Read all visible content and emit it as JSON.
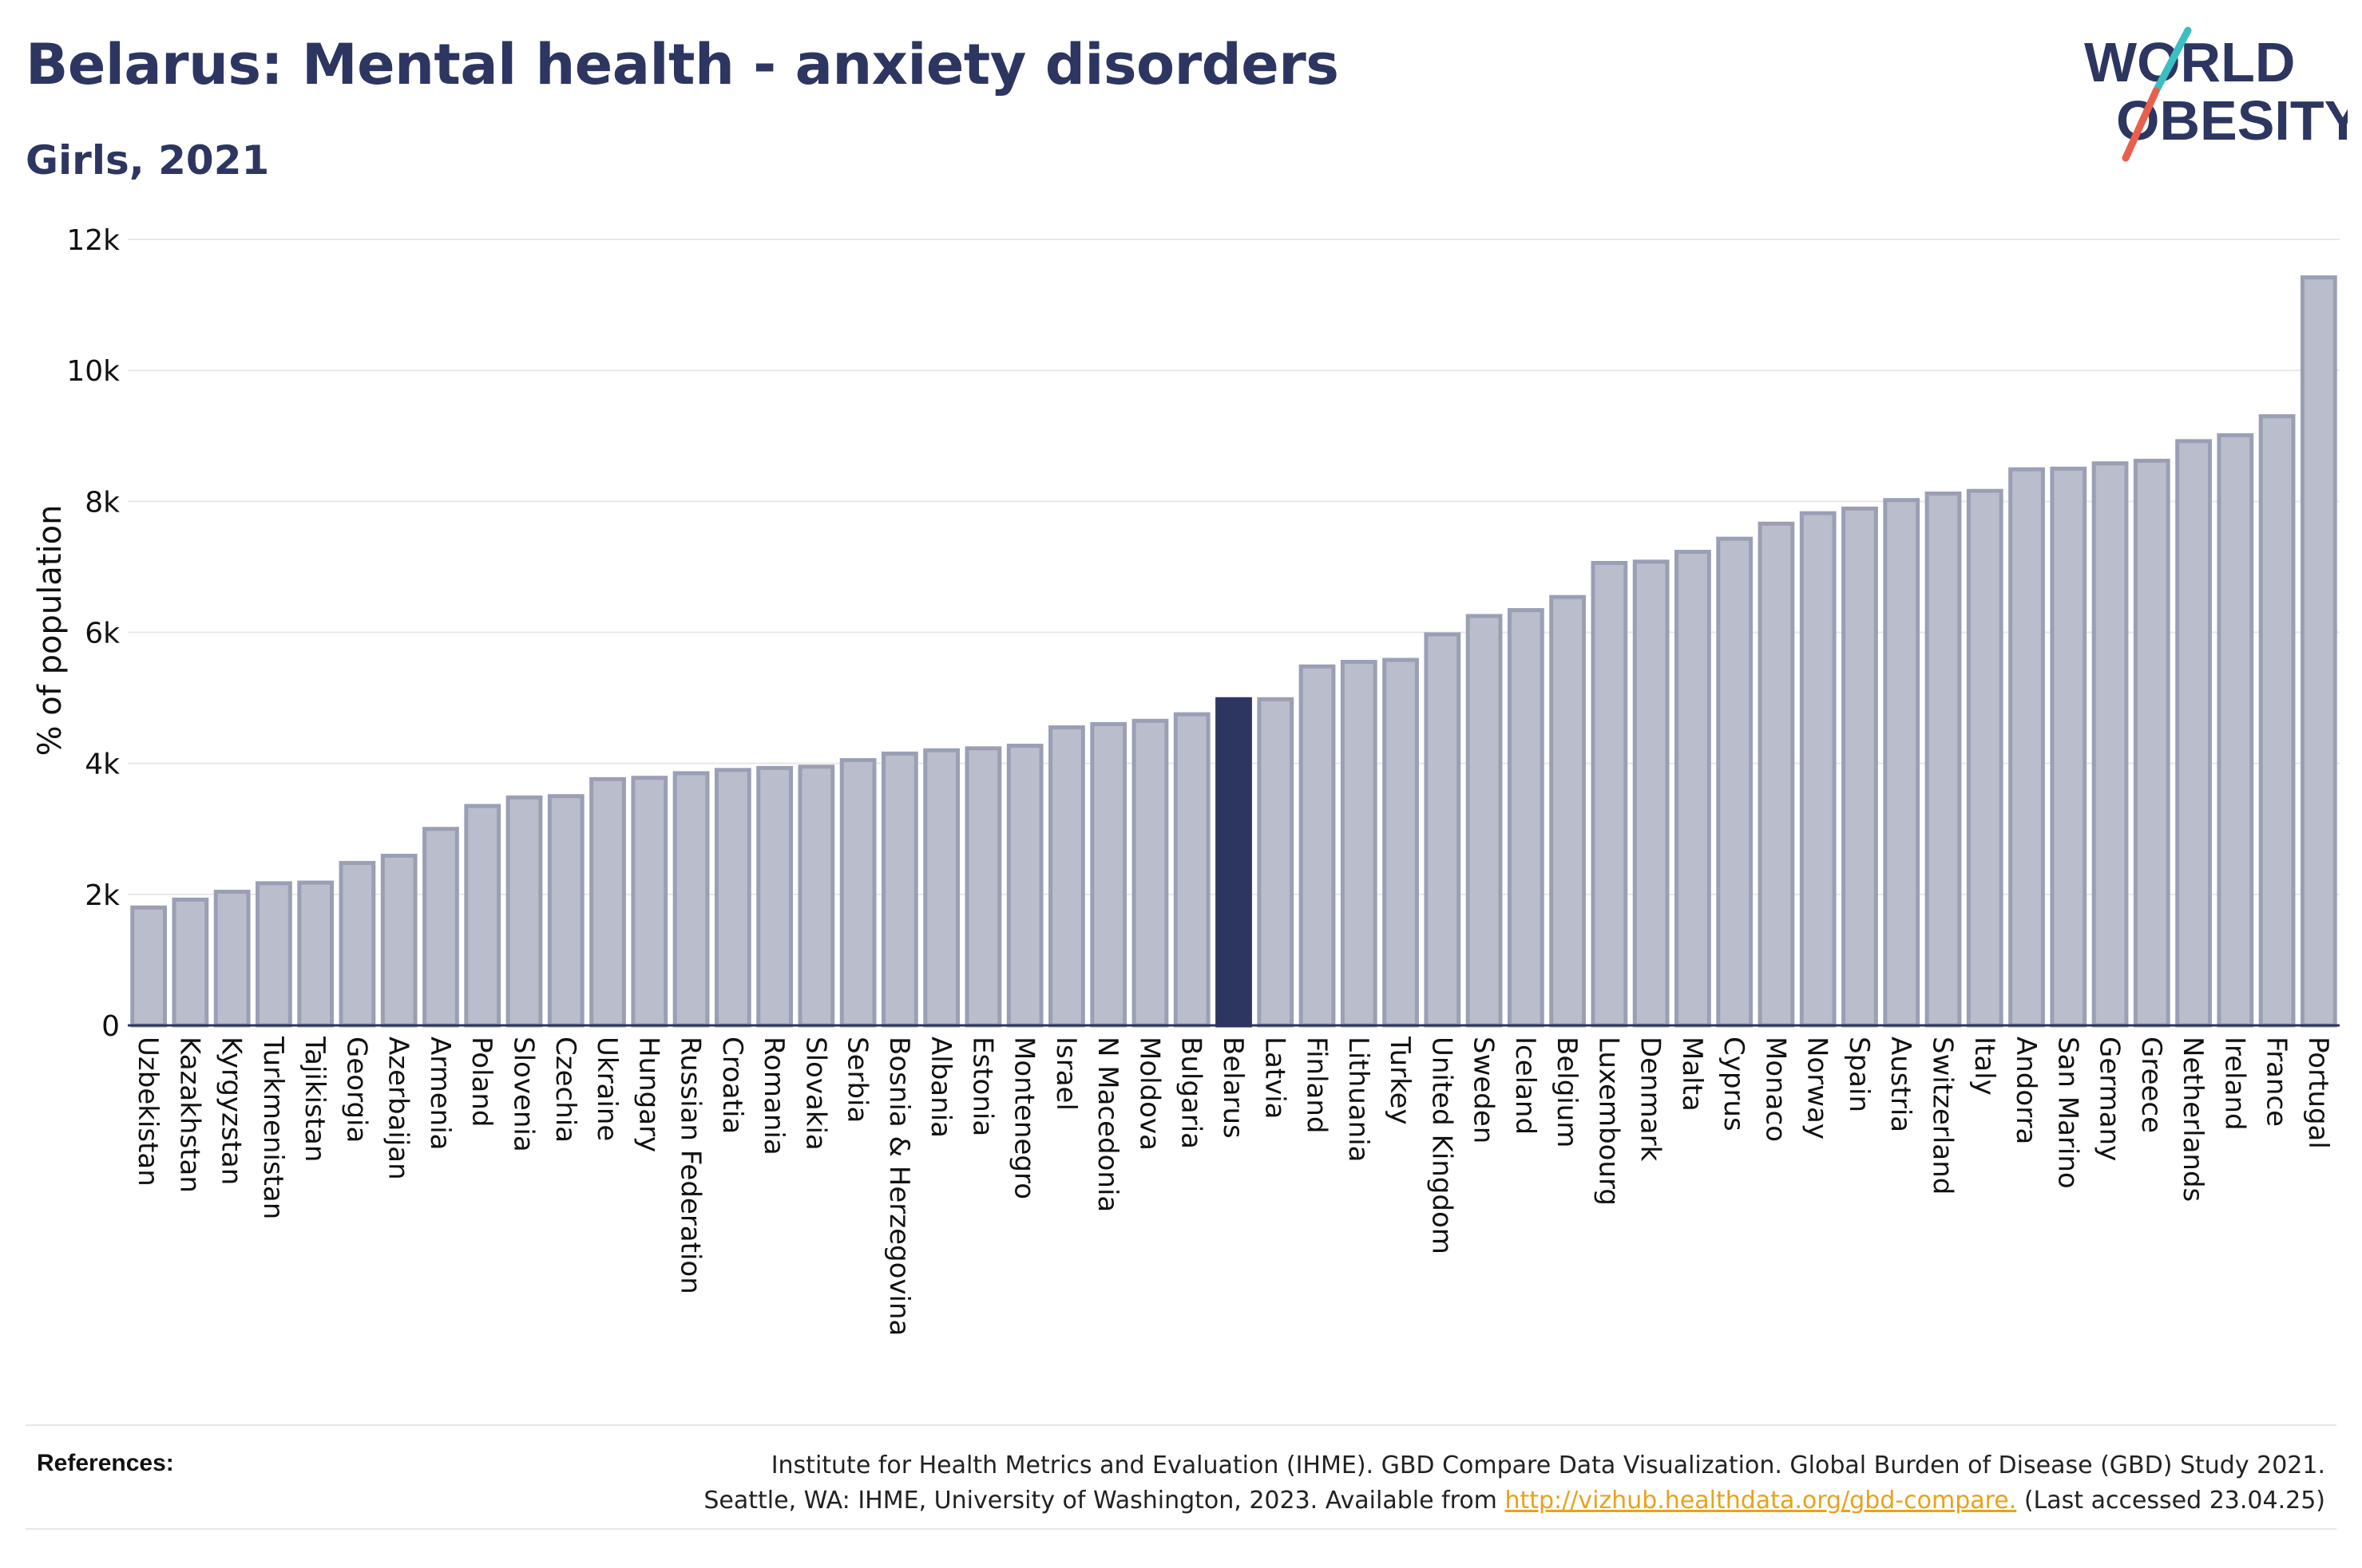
{
  "title": "Belarus: Mental health - anxiety disorders",
  "subtitle": "Girls, 2021",
  "logo": {
    "line1": "WORLD",
    "line2": "OBESITY",
    "colors": {
      "text": "#2d3561",
      "slash_top": "#3bbfc0",
      "slash_bottom": "#e8604c"
    }
  },
  "references": {
    "label": "References:",
    "line1": "Institute for Health Metrics and Evaluation (IHME). GBD Compare Data Visualization. Global Burden of Disease (GBD) Study 2021.",
    "line2_prefix": "Seattle, WA: IHME, University of Washington, 2023. Available from ",
    "link": "http://vizhub.healthdata.org/gbd-compare.",
    "line2_suffix": " (Last accessed 23.04.25)"
  },
  "colors": {
    "bar": "#b9bdcc",
    "bar_edge": "#9a9fb4",
    "highlight": "#2d3561",
    "grid": "#e8e8e8",
    "axis": "#2d3561"
  },
  "chart_data": {
    "type": "bar",
    "ylabel": "% of population",
    "ylim": [
      0,
      12000
    ],
    "yticks": [
      0,
      2000,
      4000,
      6000,
      8000,
      10000,
      12000
    ],
    "ytick_labels": [
      "0",
      "2k",
      "4k",
      "6k",
      "8k",
      "10k",
      "12k"
    ],
    "grid": true,
    "highlight": "Belarus",
    "categories": [
      "Uzbekistan",
      "Kazakhstan",
      "Kyrgyzstan",
      "Turkmenistan",
      "Tajikistan",
      "Georgia",
      "Azerbaijan",
      "Armenia",
      "Poland",
      "Slovenia",
      "Czechia",
      "Ukraine",
      "Hungary",
      "Russian Federation",
      "Croatia",
      "Romania",
      "Slovakia",
      "Serbia",
      "Bosnia & Herzegovina",
      "Albania",
      "Estonia",
      "Montenegro",
      "Israel",
      "N Macedonia",
      "Moldova",
      "Bulgaria",
      "Belarus",
      "Latvia",
      "Finland",
      "Lithuania",
      "Turkey",
      "United Kingdom",
      "Sweden",
      "Iceland",
      "Belgium",
      "Luxembourg",
      "Denmark",
      "Malta",
      "Cyprus",
      "Monaco",
      "Norway",
      "Spain",
      "Austria",
      "Switzerland",
      "Italy",
      "Andorra",
      "San Marino",
      "Germany",
      "Greece",
      "Netherlands",
      "Ireland",
      "France",
      "Portugal"
    ],
    "values": [
      1800,
      1920,
      2040,
      2170,
      2180,
      2480,
      2590,
      3000,
      3350,
      3480,
      3500,
      3760,
      3780,
      3850,
      3900,
      3930,
      3950,
      4050,
      4150,
      4200,
      4230,
      4270,
      4550,
      4600,
      4650,
      4750,
      4980,
      4980,
      5480,
      5550,
      5580,
      5970,
      6250,
      6340,
      6540,
      7060,
      7080,
      7230,
      7430,
      7660,
      7820,
      7890,
      8020,
      8120,
      8160,
      8490,
      8500,
      8580,
      8620,
      8920,
      9010,
      9300,
      11420
    ]
  }
}
